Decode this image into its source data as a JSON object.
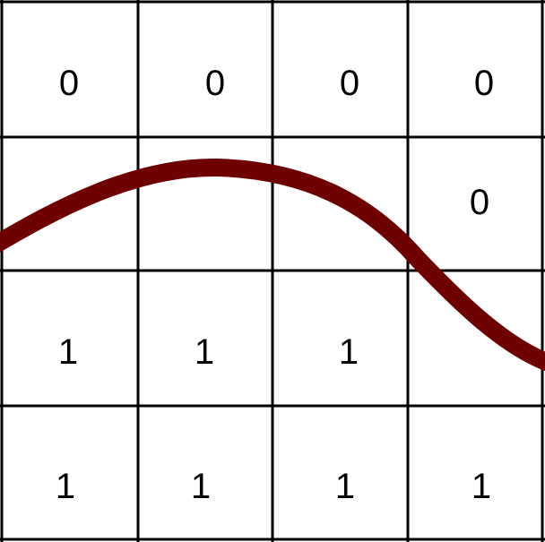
{
  "grid": {
    "rows": [
      [
        "0",
        "0",
        "0",
        "0"
      ],
      [
        "",
        "",
        "",
        "0"
      ],
      [
        "1",
        "1",
        "1",
        ""
      ],
      [
        "1",
        "1",
        "1",
        "1"
      ]
    ]
  },
  "colors": {
    "grid_line": "#000000",
    "curve": "#6e0000",
    "background": "#ffffff"
  }
}
